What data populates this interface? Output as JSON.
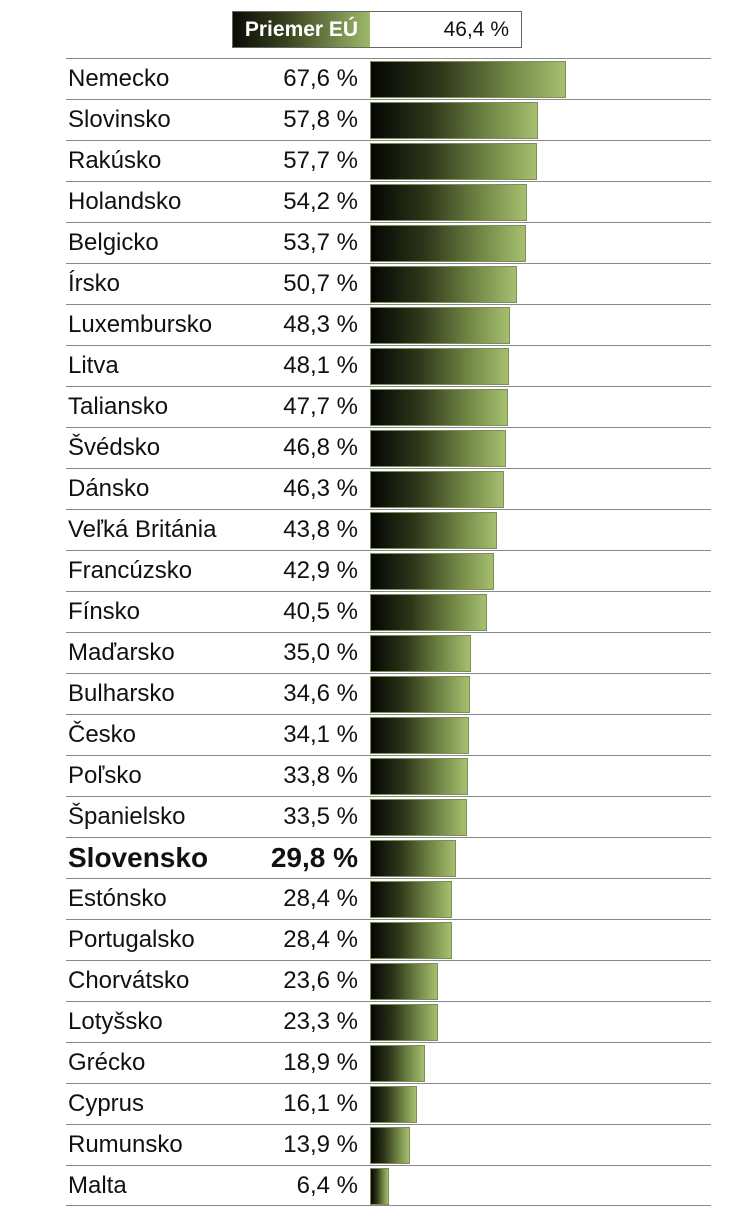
{
  "average": {
    "label": "Priemer EÚ",
    "value": "46,4 %"
  },
  "chart_data": {
    "type": "bar",
    "title": "",
    "xlabel": "",
    "ylabel": "",
    "xlim": [
      0,
      67.6
    ],
    "grid": false,
    "highlight": "Slovensko",
    "average_value": 46.4,
    "categories": [
      "Nemecko",
      "Slovinsko",
      "Rakúsko",
      "Holandsko",
      "Belgicko",
      "Írsko",
      "Luxembursko",
      "Litva",
      "Taliansko",
      "Švédsko",
      "Dánsko",
      "Veľká Británia",
      "Francúzsko",
      "Fínsko",
      "Maďarsko",
      "Bulharsko",
      "Česko",
      "Poľsko",
      "Španielsko",
      "Slovensko",
      "Estónsko",
      "Portugalsko",
      "Chorvátsko",
      "Lotyšsko",
      "Grécko",
      "Cyprus",
      "Rumunsko",
      "Malta"
    ],
    "values": [
      67.6,
      57.8,
      57.7,
      54.2,
      53.7,
      50.7,
      48.3,
      48.1,
      47.7,
      46.8,
      46.3,
      43.8,
      42.9,
      40.5,
      35.0,
      34.6,
      34.1,
      33.8,
      33.5,
      29.8,
      28.4,
      28.4,
      23.6,
      23.3,
      18.9,
      16.1,
      13.9,
      6.4
    ],
    "value_labels": [
      "67,6 %",
      "57,8 %",
      "57,7 %",
      "54,2 %",
      "53,7 %",
      "50,7 %",
      "48,3 %",
      "48,1 %",
      "47,7 %",
      "46,8 %",
      "46,3 %",
      "43,8 %",
      "42,9 %",
      "40,5 %",
      "35,0 %",
      "34,6 %",
      "34,1 %",
      "33,8 %",
      "33,5 %",
      "29,8 %",
      "28,4 %",
      "28,4 %",
      "23,6 %",
      "23,3 %",
      "18,9 %",
      "16,1 %",
      "13,9 %",
      "6,4 %"
    ]
  }
}
